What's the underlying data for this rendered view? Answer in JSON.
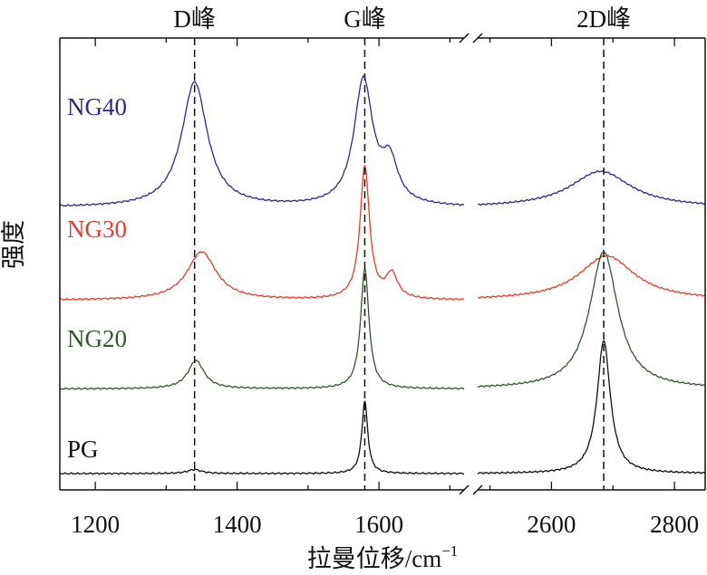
{
  "chart_data": {
    "type": "line",
    "title": "",
    "xlabel": "拉曼位移/cm",
    "xlabel_superscript": "−1",
    "ylabel": "强度",
    "y_ticks_shown": false,
    "x_axis_break": {
      "left_end": 1720,
      "right_start": 2480
    },
    "xlim_left": [
      1150,
      1720
    ],
    "xlim_right": [
      2480,
      2850
    ],
    "xticks": [
      1200,
      1400,
      1600,
      2600,
      2800
    ],
    "peak_lines": [
      {
        "label": "D峰",
        "x": 1340
      },
      {
        "label": "G峰",
        "x": 1580
      },
      {
        "label": "2D峰",
        "x": 2685
      }
    ],
    "series": [
      {
        "name": "NG40",
        "color": "#2b2b86",
        "baseline": 0.66,
        "peaks": [
          {
            "center": 1340,
            "height": 0.31,
            "width": 22
          },
          {
            "center": 1578,
            "height": 0.31,
            "width": 16
          },
          {
            "center": 1615,
            "height": 0.1,
            "width": 14
          },
          {
            "center": 2680,
            "height": 0.09,
            "width": 60
          }
        ]
      },
      {
        "name": "NG30",
        "color": "#e83a2e",
        "baseline": 0.43,
        "peaks": [
          {
            "center": 1350,
            "height": 0.12,
            "width": 25
          },
          {
            "center": 1580,
            "height": 0.33,
            "width": 8
          },
          {
            "center": 1618,
            "height": 0.06,
            "width": 10
          },
          {
            "center": 2690,
            "height": 0.11,
            "width": 55
          }
        ]
      },
      {
        "name": "NG20",
        "color": "#2e5a2a",
        "baseline": 0.21,
        "peaks": [
          {
            "center": 1342,
            "height": 0.07,
            "width": 14
          },
          {
            "center": 1580,
            "height": 0.3,
            "width": 7
          },
          {
            "center": 2685,
            "height": 0.34,
            "width": 28
          }
        ]
      },
      {
        "name": "PG",
        "color": "#111111",
        "baseline": 0.0,
        "peaks": [
          {
            "center": 1340,
            "height": 0.01,
            "width": 12
          },
          {
            "center": 1580,
            "height": 0.18,
            "width": 5
          },
          {
            "center": 2685,
            "height": 0.33,
            "width": 13
          }
        ]
      }
    ]
  }
}
